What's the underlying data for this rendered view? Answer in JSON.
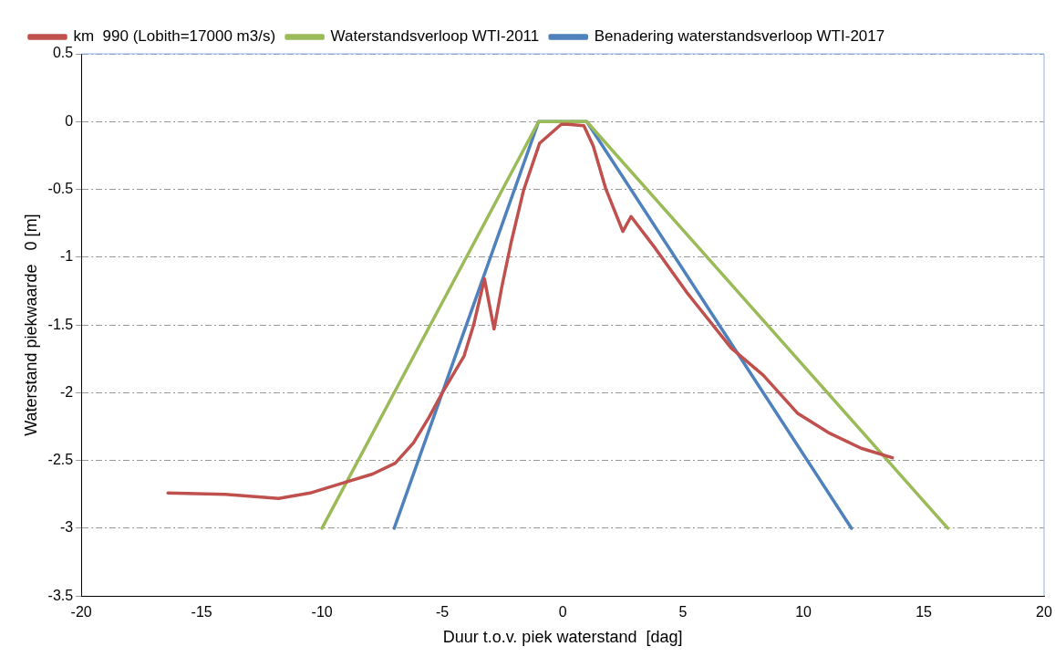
{
  "chart_data": {
    "type": "line",
    "xlabel": "Duur t.o.v. piek waterstand  [dag]",
    "ylabel": "Waterstand piekwaarde   0 [m]",
    "xlim": [
      -20,
      20
    ],
    "xticks": [
      -20,
      -15,
      -10,
      -5,
      0,
      5,
      10,
      15,
      20
    ],
    "ylim": [
      -3.5,
      0.5
    ],
    "yticks": [
      -3.5,
      -3,
      -2.5,
      -2,
      -1.5,
      -1,
      -0.5,
      0,
      0.5
    ],
    "grid": "y",
    "legend": "top",
    "marker": "none",
    "line_style": "solid",
    "series": [
      {
        "name": "km  990 (Lobith=17000 m3/s)",
        "color": "#c0504d",
        "x": [
          -16.4,
          -14.0,
          -11.8,
          -10.5,
          -9.2,
          -7.9,
          -6.96,
          -6.2,
          -5.55,
          -5.0,
          -4.1,
          -3.7,
          -3.25,
          -2.85,
          -2.53,
          -2.14,
          -1.63,
          -0.96,
          -0.06,
          0.22,
          0.88,
          1.27,
          1.78,
          2.5,
          2.84,
          3.87,
          5.2,
          7.0,
          8.33,
          9.75,
          11.1,
          12.4,
          13.7
        ],
        "values": [
          -2.74,
          -2.75,
          -2.78,
          -2.74,
          -2.67,
          -2.6,
          -2.52,
          -2.37,
          -2.18,
          -2.0,
          -1.73,
          -1.5,
          -1.16,
          -1.53,
          -1.22,
          -0.89,
          -0.51,
          -0.16,
          -0.02,
          -0.02,
          -0.03,
          -0.18,
          -0.49,
          -0.81,
          -0.7,
          -0.94,
          -1.27,
          -1.67,
          -1.87,
          -2.15,
          -2.3,
          -2.41,
          -2.48
        ]
      },
      {
        "name": "Waterstandsverloop WTI-2011",
        "color": "#9bbb59",
        "x": [
          -10,
          -1,
          1,
          16
        ],
        "values": [
          -3,
          0,
          0,
          -3
        ]
      },
      {
        "name": "Benadering waterstandsverloop WTI-2017",
        "color": "#4f81bd",
        "x": [
          -7,
          -1,
          1,
          12
        ],
        "values": [
          -3,
          0,
          0,
          -3
        ]
      }
    ]
  }
}
